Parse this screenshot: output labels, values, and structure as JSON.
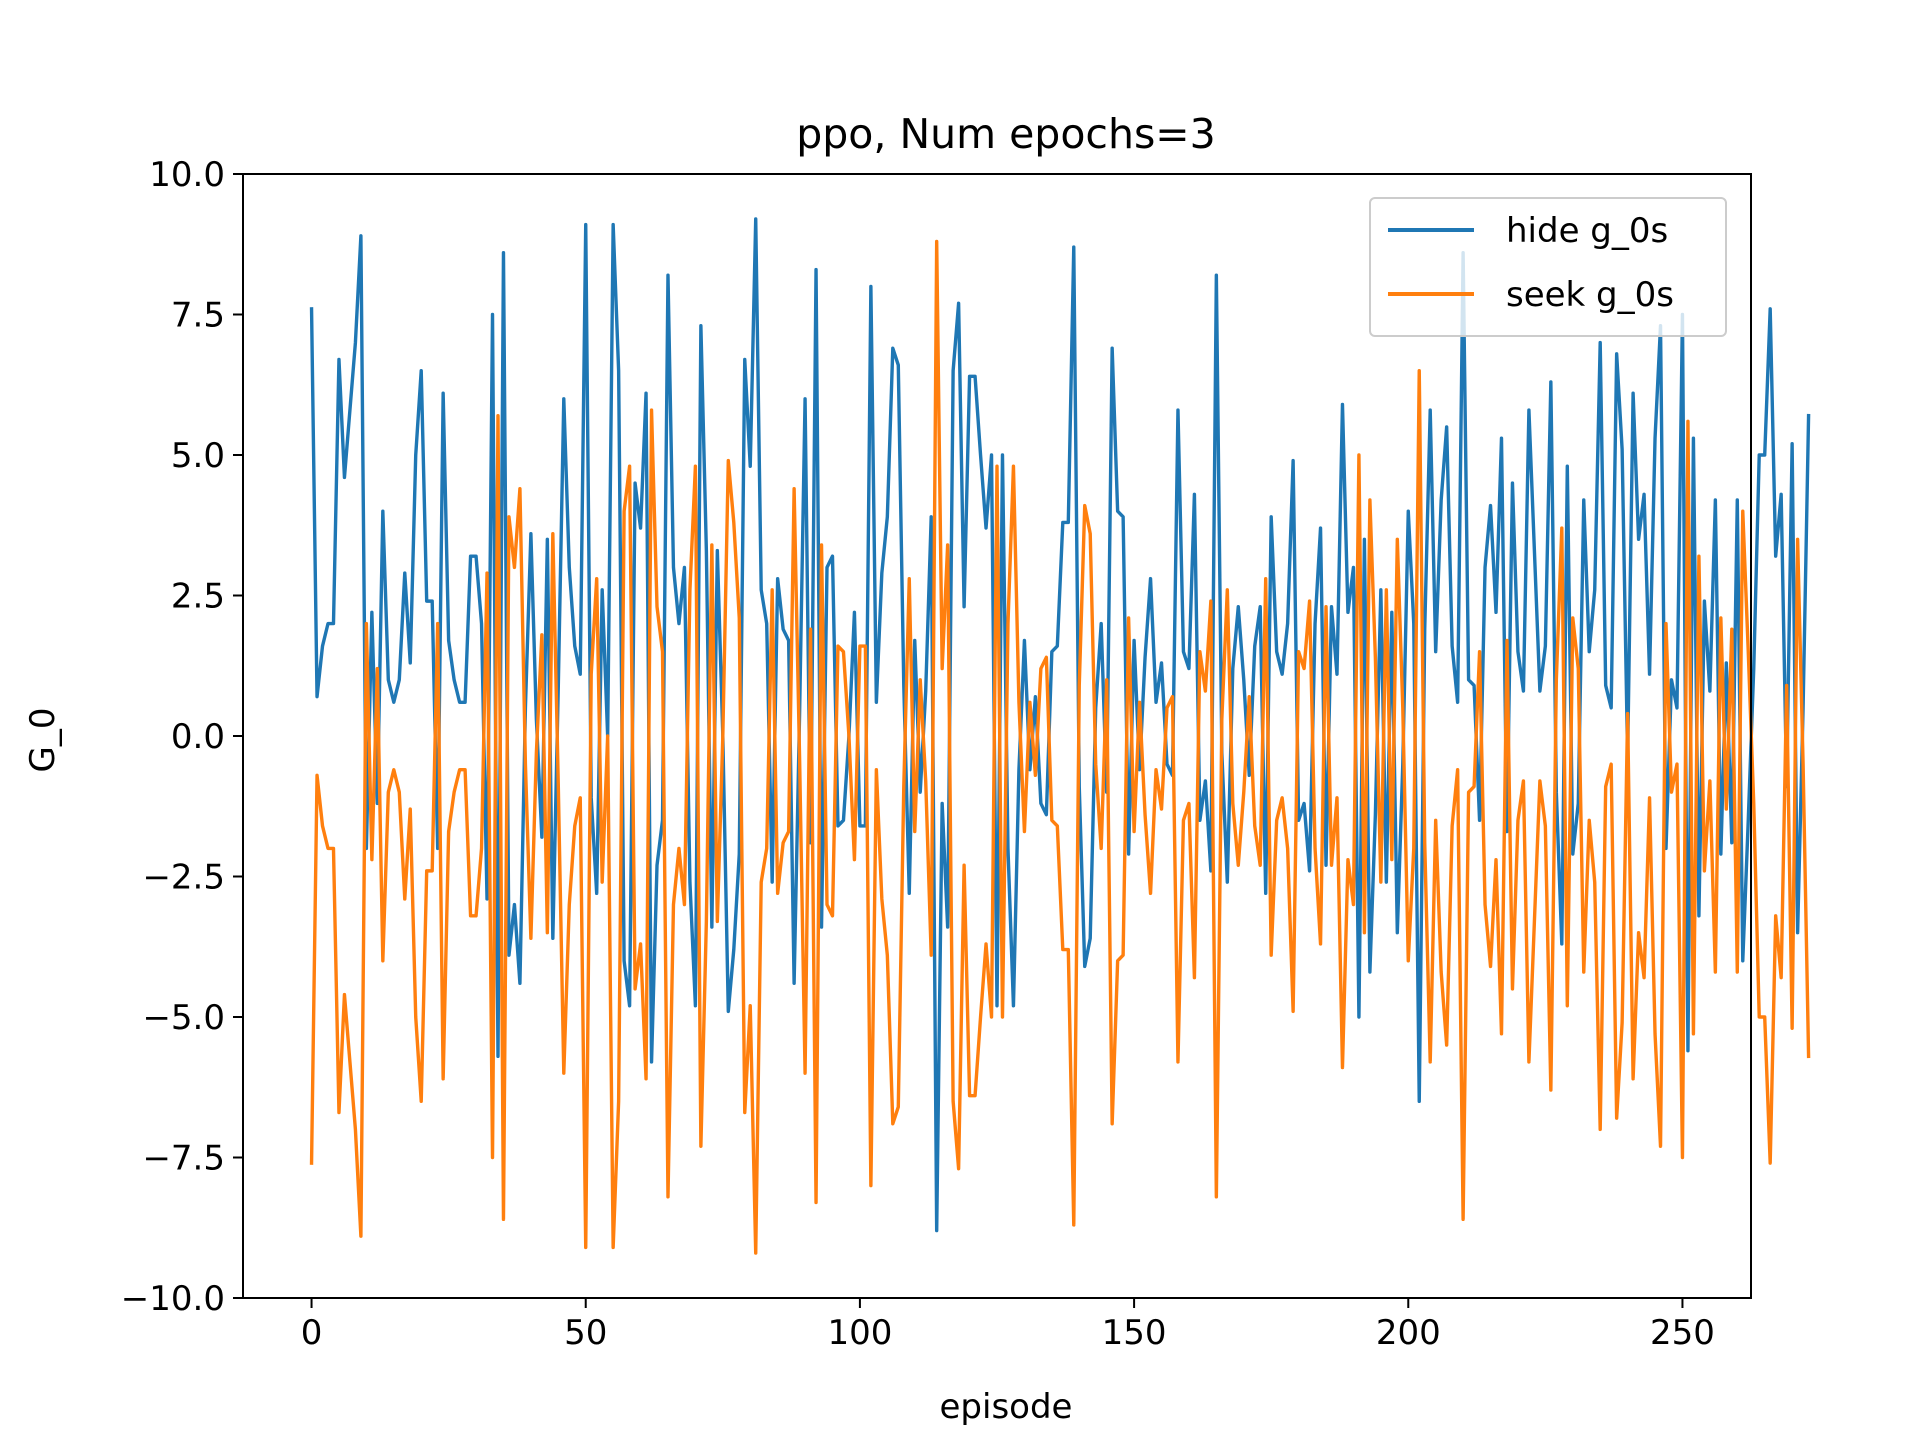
{
  "chart_data": {
    "type": "line",
    "title": "ppo, Num epochs=3",
    "xlabel": "episode",
    "ylabel": "G_0",
    "xlim": [
      -12.5,
      262.5
    ],
    "ylim": [
      -10.0,
      10.0
    ],
    "xticks": [
      0,
      50,
      100,
      150,
      200,
      250
    ],
    "xtick_labels": [
      "0",
      "50",
      "100",
      "150",
      "200",
      "250"
    ],
    "yticks": [
      10.0,
      7.5,
      5.0,
      2.5,
      0.0,
      -2.5,
      -5.0,
      -7.5,
      -10.0
    ],
    "ytick_labels": [
      "10.0",
      "7.5",
      "5.0",
      "2.5",
      "0.0",
      "−2.5",
      "−5.0",
      "−7.5",
      "−10.0"
    ],
    "grid": false,
    "legend_position": "upper right",
    "series_note": "seek g_0s is the negation of hide g_0s at every episode",
    "series": [
      {
        "name": "hide g_0s",
        "color": "#1f77b4",
        "values": [
          7.6,
          0.7,
          1.6,
          2.0,
          2.0,
          6.7,
          4.6,
          5.8,
          7.0,
          8.9,
          -2.0,
          2.2,
          -1.2,
          4.0,
          1.0,
          0.6,
          1.0,
          2.9,
          1.3,
          5.0,
          6.5,
          2.4,
          2.4,
          -2.0,
          6.1,
          1.7,
          1.0,
          0.6,
          0.6,
          3.2,
          3.2,
          2.0,
          -2.9,
          7.5,
          -5.7,
          8.6,
          -3.9,
          -3.0,
          -4.4,
          0.5,
          3.6,
          0.3,
          -1.8,
          3.5,
          -3.6,
          0.9,
          6.0,
          3.0,
          1.6,
          1.1,
          9.1,
          -1.1,
          -2.8,
          2.6,
          0.0,
          9.1,
          6.5,
          -4.0,
          -4.8,
          4.5,
          3.7,
          6.1,
          -5.8,
          -2.3,
          -1.5,
          8.2,
          3.0,
          2.0,
          3.0,
          -2.6,
          -4.8,
          7.3,
          3.3,
          -3.4,
          3.3,
          0.0,
          -4.9,
          -3.8,
          -2.1,
          6.7,
          4.8,
          9.2,
          2.6,
          2.0,
          -2.6,
          2.8,
          1.9,
          1.7,
          -4.4,
          0.4,
          6.0,
          -1.9,
          8.3,
          -3.4,
          3.0,
          3.2,
          -1.6,
          -1.5,
          0.0,
          2.2,
          -1.6,
          -1.6,
          8.0,
          0.6,
          2.9,
          3.9,
          6.9,
          6.6,
          0.9,
          -2.8,
          1.7,
          -1.0,
          0.8,
          3.9,
          -8.8,
          -1.2,
          -3.4,
          6.5,
          7.7,
          2.3,
          6.4,
          6.4,
          5.0,
          3.7,
          5.0,
          -4.8,
          5.0,
          -2.0,
          -4.8,
          -0.6,
          1.7,
          -0.6,
          0.7,
          -1.2,
          -1.4,
          1.5,
          1.6,
          3.8,
          3.8,
          8.7,
          -0.9,
          -4.1,
          -3.6,
          0.5,
          2.0,
          -1.0,
          6.9,
          4.0,
          3.9,
          -2.1,
          1.7,
          -0.6,
          1.4,
          2.8,
          0.6,
          1.3,
          -0.5,
          -0.7,
          5.8,
          1.5,
          1.2,
          4.3,
          -1.5,
          -0.8,
          -2.4,
          8.2,
          -0.3,
          -2.6,
          1.2,
          2.3,
          1.0,
          -0.7,
          1.6,
          2.3,
          -2.8,
          3.9,
          1.5,
          1.1,
          2.0,
          4.9,
          -1.5,
          -1.2,
          -2.4,
          2.0,
          3.7,
          -2.3,
          2.3,
          1.1,
          5.9,
          2.2,
          3.0,
          -5.0,
          3.5,
          -4.2,
          -1.4,
          2.6,
          -2.6,
          2.2,
          -3.5,
          -0.5,
          4.0,
          2.0,
          -6.5,
          1.9,
          5.8,
          1.5,
          4.2,
          5.5,
          1.6,
          0.6,
          8.6,
          1.0,
          0.9,
          -1.5,
          3.0,
          4.1,
          2.2,
          5.3,
          -1.7,
          4.5,
          1.5,
          0.8,
          5.8,
          3.3,
          0.8,
          1.6,
          6.3,
          -1.0,
          -3.7,
          4.8,
          -2.1,
          -1.2,
          4.2,
          1.5,
          2.6,
          7.0,
          0.9,
          0.5,
          6.8,
          5.1,
          -0.4,
          6.1,
          3.5,
          4.3,
          1.1,
          5.3,
          7.3,
          -2.0,
          1.0,
          0.5,
          7.5,
          -5.6,
          5.3,
          -3.2,
          2.4,
          0.8,
          4.2,
          -2.1,
          1.3,
          -1.9,
          4.2,
          -4.0,
          -1.5,
          1.2,
          5.0,
          5.0,
          7.6,
          3.2,
          4.3,
          -0.9,
          5.2,
          -3.5,
          0.5,
          5.7
        ]
      },
      {
        "name": "seek g_0s",
        "color": "#ff7f0e",
        "values": [
          -7.6,
          -0.7,
          -1.6,
          -2.0,
          -2.0,
          -6.7,
          -4.6,
          -5.8,
          -7.0,
          -8.9,
          2.0,
          -2.2,
          1.2,
          -4.0,
          -1.0,
          -0.6,
          -1.0,
          -2.9,
          -1.3,
          -5.0,
          -6.5,
          -2.4,
          -2.4,
          2.0,
          -6.1,
          -1.7,
          -1.0,
          -0.6,
          -0.6,
          -3.2,
          -3.2,
          -2.0,
          2.9,
          -7.5,
          5.7,
          -8.6,
          3.9,
          3.0,
          4.4,
          -0.5,
          -3.6,
          -0.3,
          1.8,
          -3.5,
          3.6,
          -0.9,
          -6.0,
          -3.0,
          -1.6,
          -1.1,
          -9.1,
          1.1,
          2.8,
          -2.6,
          0.0,
          -9.1,
          -6.5,
          4.0,
          4.8,
          -4.5,
          -3.7,
          -6.1,
          5.8,
          2.3,
          1.5,
          -8.2,
          -3.0,
          -2.0,
          -3.0,
          2.6,
          4.8,
          -7.3,
          -3.3,
          3.4,
          -3.3,
          0.0,
          4.9,
          3.8,
          2.1,
          -6.7,
          -4.8,
          -9.2,
          -2.6,
          -2.0,
          2.6,
          -2.8,
          -1.9,
          -1.7,
          4.4,
          -0.4,
          -6.0,
          1.9,
          -8.3,
          3.4,
          -3.0,
          -3.2,
          1.6,
          1.5,
          0.0,
          -2.2,
          1.6,
          1.6,
          -8.0,
          -0.6,
          -2.9,
          -3.9,
          -6.9,
          -6.6,
          -0.9,
          2.8,
          -1.7,
          1.0,
          -0.8,
          -3.9,
          8.8,
          1.2,
          3.4,
          -6.5,
          -7.7,
          -2.3,
          -6.4,
          -6.4,
          -5.0,
          -3.7,
          -5.0,
          4.8,
          -5.0,
          2.0,
          4.8,
          0.6,
          -1.7,
          0.6,
          -0.7,
          1.2,
          1.4,
          -1.5,
          -1.6,
          -3.8,
          -3.8,
          -8.7,
          0.9,
          4.1,
          3.6,
          -0.5,
          -2.0,
          1.0,
          -6.9,
          -4.0,
          -3.9,
          2.1,
          -1.7,
          0.6,
          -1.4,
          -2.8,
          -0.6,
          -1.3,
          0.5,
          0.7,
          -5.8,
          -1.5,
          -1.2,
          -4.3,
          1.5,
          0.8,
          2.4,
          -8.2,
          0.3,
          2.6,
          -1.2,
          -2.3,
          -1.0,
          0.7,
          -1.6,
          -2.3,
          2.8,
          -3.9,
          -1.5,
          -1.1,
          -2.0,
          -4.9,
          1.5,
          1.2,
          2.4,
          -2.0,
          -3.7,
          2.3,
          -2.3,
          -1.1,
          -5.9,
          -2.2,
          -3.0,
          5.0,
          -3.5,
          4.2,
          1.4,
          -2.6,
          2.6,
          -2.2,
          3.5,
          0.5,
          -4.0,
          -2.0,
          6.5,
          -1.9,
          -5.8,
          -1.5,
          -4.2,
          -5.5,
          -1.6,
          -0.6,
          -8.6,
          -1.0,
          -0.9,
          1.5,
          -3.0,
          -4.1,
          -2.2,
          -5.3,
          1.7,
          -4.5,
          -1.5,
          -0.8,
          -5.8,
          -3.3,
          -0.8,
          -1.6,
          -6.3,
          1.0,
          3.7,
          -4.8,
          2.1,
          1.2,
          -4.2,
          -1.5,
          -2.6,
          -7.0,
          -0.9,
          -0.5,
          -6.8,
          -5.1,
          0.4,
          -6.1,
          -3.5,
          -4.3,
          -1.1,
          -5.3,
          -7.3,
          2.0,
          -1.0,
          -0.5,
          -7.5,
          5.6,
          -5.3,
          3.2,
          -2.4,
          -0.8,
          -4.2,
          2.1,
          -1.3,
          1.9,
          -4.2,
          4.0,
          1.5,
          -1.2,
          -5.0,
          -5.0,
          -7.6,
          -3.2,
          -4.3,
          0.9,
          -5.2,
          3.5,
          -0.5,
          -5.7
        ]
      }
    ]
  }
}
